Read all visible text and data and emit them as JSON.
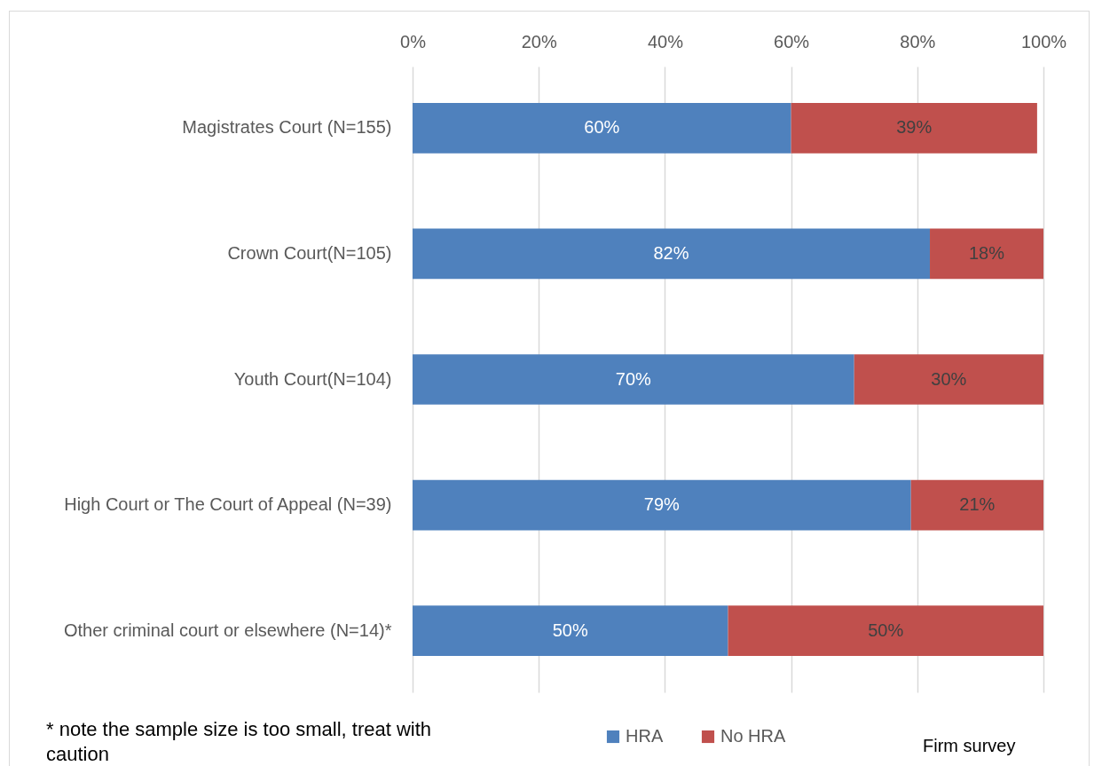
{
  "chart_data": {
    "type": "bar",
    "orientation": "horizontal",
    "stacked": true,
    "categories": [
      "Magistrates Court (N=155)",
      "Crown Court(N=105)",
      "Youth Court(N=104)",
      "High Court or The Court of Appeal (N=39)",
      "Other criminal court or elsewhere (N=14)*"
    ],
    "series": [
      {
        "name": "HRA",
        "color": "#4f81bd",
        "values": [
          60,
          82,
          70,
          79,
          50
        ],
        "value_labels": [
          "60%",
          "82%",
          "70%",
          "79%",
          "50%"
        ]
      },
      {
        "name": "No HRA",
        "color": "#c0504d",
        "values": [
          39,
          18,
          30,
          21,
          50
        ],
        "value_labels": [
          "39%",
          "18%",
          "30%",
          "21%",
          "50%"
        ]
      }
    ],
    "xlim": [
      0,
      100
    ],
    "xticks": [
      {
        "value": 0,
        "label": "0%"
      },
      {
        "value": 20,
        "label": "20%"
      },
      {
        "value": 40,
        "label": "40%"
      },
      {
        "value": 60,
        "label": "60%"
      },
      {
        "value": 80,
        "label": "80%"
      },
      {
        "value": 100,
        "label": "100%"
      }
    ],
    "grid": "x",
    "legend": "bottom",
    "annotations": [
      "* note the sample size is too small, treat with caution",
      "Firm survey"
    ]
  }
}
